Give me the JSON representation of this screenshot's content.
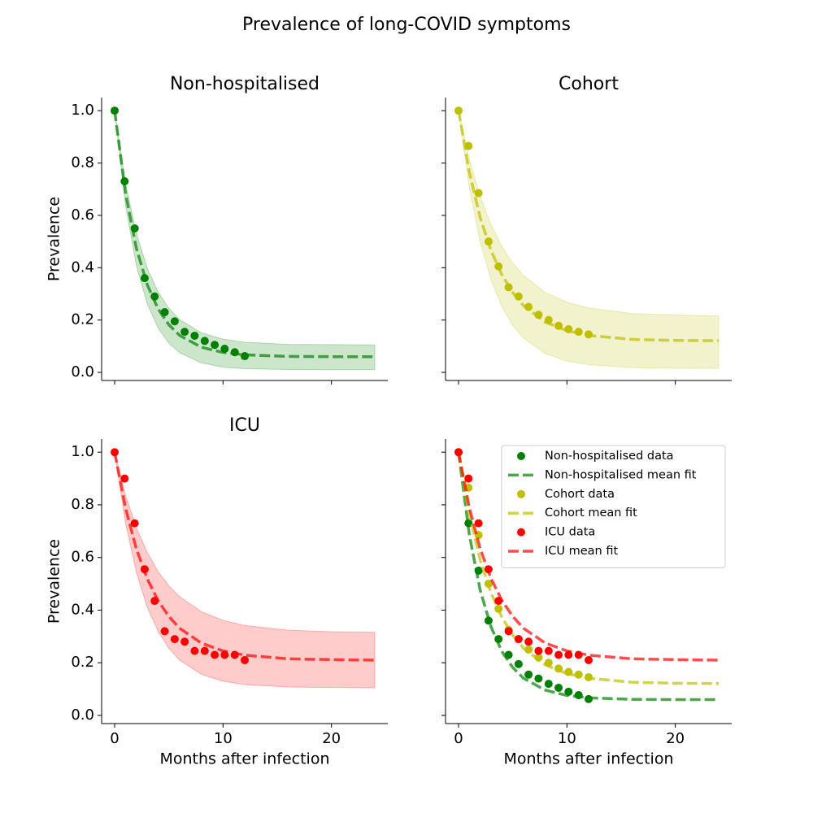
{
  "title": "Prevalence of long-COVID symptoms",
  "chart_data": [
    {
      "type": "line",
      "title": "Non-hospitalised",
      "ylabel": "Prevalence",
      "xlim": [
        -1.2,
        25.2
      ],
      "ylim": [
        -0.031,
        1.05
      ],
      "xticks": [
        0,
        10,
        20
      ],
      "yticks": [
        {
          "value": 0,
          "label": "0.0"
        },
        {
          "value": 0.2,
          "label": "0.2"
        },
        {
          "value": 0.4,
          "label": "0.4"
        },
        {
          "value": 0.6,
          "label": "0.6"
        },
        {
          "value": 0.8,
          "label": "0.8"
        },
        {
          "value": 1,
          "label": "1.0"
        }
      ],
      "band": {
        "color": "#008000",
        "x": [
          0,
          1,
          2,
          3,
          4,
          5,
          6,
          8,
          10,
          12,
          16,
          20,
          24
        ],
        "lower": [
          1.0,
          0.639,
          0.409,
          0.263,
          0.17,
          0.112,
          0.075,
          0.036,
          0.02,
          0.014,
          0.011,
          0.01,
          0.01
        ],
        "upper": [
          1.0,
          0.723,
          0.532,
          0.399,
          0.308,
          0.245,
          0.202,
          0.151,
          0.127,
          0.115,
          0.107,
          0.106,
          0.105
        ]
      },
      "series": [
        {
          "style": "points",
          "color": "#008000",
          "x": [
            0,
            0.92,
            1.85,
            2.77,
            3.69,
            4.62,
            5.54,
            6.46,
            7.38,
            8.31,
            9.23,
            10.15,
            11.08,
            12
          ],
          "values": [
            1.0,
            0.73,
            0.55,
            0.36,
            0.29,
            0.23,
            0.195,
            0.155,
            0.14,
            0.12,
            0.105,
            0.09,
            0.077,
            0.062
          ]
        },
        {
          "style": "dashed",
          "color": "#008000",
          "x": [
            0,
            1,
            2,
            3,
            4,
            5,
            6,
            8,
            10,
            12,
            16,
            20,
            24
          ],
          "values": [
            1.0,
            0.685,
            0.475,
            0.336,
            0.243,
            0.182,
            0.141,
            0.096,
            0.076,
            0.067,
            0.061,
            0.06,
            0.06
          ]
        }
      ]
    },
    {
      "type": "line",
      "title": "Cohort",
      "xlim": [
        -1.2,
        25.2
      ],
      "ylim": [
        -0.031,
        1.05
      ],
      "xticks": [
        0,
        10,
        20
      ],
      "yticks": [
        0,
        0.2,
        0.4,
        0.6,
        0.8,
        1
      ],
      "band": {
        "color": "#bfbf00",
        "x": [
          0,
          1,
          2,
          3,
          4,
          5,
          6,
          8,
          10,
          12,
          16,
          20,
          24
        ],
        "lower": [
          1.0,
          0.705,
          0.498,
          0.353,
          0.251,
          0.18,
          0.13,
          0.072,
          0.043,
          0.029,
          0.018,
          0.016,
          0.015
        ],
        "upper": [
          1.0,
          0.814,
          0.672,
          0.564,
          0.481,
          0.418,
          0.37,
          0.305,
          0.268,
          0.246,
          0.225,
          0.219,
          0.216
        ]
      },
      "series": [
        {
          "style": "points",
          "color": "#bfbf00",
          "x": [
            0,
            0.92,
            1.85,
            2.77,
            3.69,
            4.62,
            5.54,
            6.46,
            7.38,
            8.31,
            9.23,
            10.15,
            11.08,
            12
          ],
          "values": [
            1.0,
            0.865,
            0.685,
            0.5,
            0.405,
            0.325,
            0.29,
            0.25,
            0.22,
            0.2,
            0.178,
            0.165,
            0.155,
            0.145
          ]
        },
        {
          "style": "dashed",
          "color": "#bfbf00",
          "x": [
            0,
            1,
            2,
            3,
            4,
            5,
            6,
            8,
            10,
            12,
            16,
            20,
            24
          ],
          "values": [
            1.0,
            0.764,
            0.591,
            0.465,
            0.373,
            0.305,
            0.255,
            0.192,
            0.159,
            0.141,
            0.126,
            0.122,
            0.121
          ]
        }
      ]
    },
    {
      "type": "line",
      "title": "ICU",
      "ylabel": "Prevalence",
      "xlabel": "Months after infection",
      "xlim": [
        -1.2,
        25.2
      ],
      "ylim": [
        -0.031,
        1.05
      ],
      "xticks": [
        0,
        10,
        20
      ],
      "yticks": [
        {
          "value": 0,
          "label": "0.0"
        },
        {
          "value": 0.2,
          "label": "0.2"
        },
        {
          "value": 0.4,
          "label": "0.4"
        },
        {
          "value": 0.6,
          "label": "0.6"
        },
        {
          "value": 0.8,
          "label": "0.8"
        },
        {
          "value": 1,
          "label": "1.0"
        }
      ],
      "band": {
        "color": "#ff0000",
        "x": [
          0,
          1,
          2,
          3,
          4,
          5,
          6,
          8,
          10,
          12,
          16,
          20,
          24
        ],
        "lower": [
          1.0,
          0.732,
          0.544,
          0.412,
          0.32,
          0.255,
          0.21,
          0.156,
          0.13,
          0.117,
          0.108,
          0.106,
          0.105
        ],
        "upper": [
          1.0,
          0.838,
          0.714,
          0.62,
          0.547,
          0.492,
          0.451,
          0.394,
          0.361,
          0.342,
          0.324,
          0.318,
          0.316
        ]
      },
      "series": [
        {
          "style": "points",
          "color": "#ff0000",
          "x": [
            0,
            0.92,
            1.85,
            2.77,
            3.69,
            4.62,
            5.54,
            6.46,
            7.38,
            8.31,
            9.23,
            10.15,
            11.08,
            12
          ],
          "values": [
            1.0,
            0.9,
            0.73,
            0.555,
            0.435,
            0.32,
            0.29,
            0.28,
            0.245,
            0.245,
            0.23,
            0.23,
            0.23,
            0.21
          ]
        },
        {
          "style": "dashed",
          "color": "#ff0000",
          "x": [
            0,
            1,
            2,
            3,
            4,
            5,
            6,
            8,
            10,
            12,
            16,
            20,
            24
          ],
          "values": [
            1.0,
            0.788,
            0.633,
            0.52,
            0.437,
            0.376,
            0.331,
            0.275,
            0.245,
            0.229,
            0.215,
            0.212,
            0.21
          ]
        }
      ]
    },
    {
      "type": "line",
      "xlabel": "Months after infection",
      "legend": "upper right",
      "xlim": [
        -1.2,
        25.2
      ],
      "ylim": [
        -0.031,
        1.05
      ],
      "xticks": [
        0,
        10,
        20
      ],
      "yticks": [
        0,
        0.2,
        0.4,
        0.6,
        0.8,
        1
      ],
      "series": [
        {
          "name": "Non-hospitalised data",
          "style": "points",
          "color": "#008000",
          "x": [
            0,
            0.92,
            1.85,
            2.77,
            3.69,
            4.62,
            5.54,
            6.46,
            7.38,
            8.31,
            9.23,
            10.15,
            11.08,
            12
          ],
          "values": [
            1.0,
            0.73,
            0.55,
            0.36,
            0.29,
            0.23,
            0.195,
            0.155,
            0.14,
            0.12,
            0.105,
            0.09,
            0.077,
            0.062
          ]
        },
        {
          "name": "Non-hospitalised mean fit",
          "style": "dashed",
          "color": "#008000",
          "x": [
            0,
            1,
            2,
            3,
            4,
            5,
            6,
            8,
            10,
            12,
            16,
            20,
            24
          ],
          "values": [
            1.0,
            0.685,
            0.475,
            0.336,
            0.243,
            0.182,
            0.141,
            0.096,
            0.076,
            0.067,
            0.061,
            0.06,
            0.06
          ]
        },
        {
          "name": "Cohort data",
          "style": "points",
          "color": "#bfbf00",
          "x": [
            0,
            0.92,
            1.85,
            2.77,
            3.69,
            4.62,
            5.54,
            6.46,
            7.38,
            8.31,
            9.23,
            10.15,
            11.08,
            12
          ],
          "values": [
            1.0,
            0.865,
            0.685,
            0.5,
            0.405,
            0.325,
            0.29,
            0.25,
            0.22,
            0.2,
            0.178,
            0.165,
            0.155,
            0.145
          ]
        },
        {
          "name": "Cohort mean fit",
          "style": "dashed",
          "color": "#bfbf00",
          "x": [
            0,
            1,
            2,
            3,
            4,
            5,
            6,
            8,
            10,
            12,
            16,
            20,
            24
          ],
          "values": [
            1.0,
            0.764,
            0.591,
            0.465,
            0.373,
            0.305,
            0.255,
            0.192,
            0.159,
            0.141,
            0.126,
            0.122,
            0.121
          ]
        },
        {
          "name": "ICU data",
          "style": "points",
          "color": "#ff0000",
          "x": [
            0,
            0.92,
            1.85,
            2.77,
            3.69,
            4.62,
            5.54,
            6.46,
            7.38,
            8.31,
            9.23,
            10.15,
            11.08,
            12
          ],
          "values": [
            1.0,
            0.9,
            0.73,
            0.555,
            0.435,
            0.32,
            0.29,
            0.28,
            0.245,
            0.245,
            0.23,
            0.23,
            0.23,
            0.21
          ]
        },
        {
          "name": "ICU mean fit",
          "style": "dashed",
          "color": "#ff0000",
          "x": [
            0,
            1,
            2,
            3,
            4,
            5,
            6,
            8,
            10,
            12,
            16,
            20,
            24
          ],
          "values": [
            1.0,
            0.788,
            0.633,
            0.52,
            0.437,
            0.376,
            0.331,
            0.275,
            0.245,
            0.229,
            0.215,
            0.212,
            0.21
          ]
        }
      ]
    }
  ]
}
